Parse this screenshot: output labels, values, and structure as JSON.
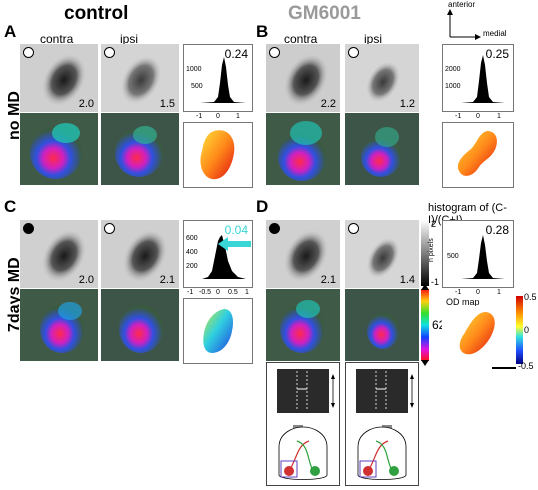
{
  "titles": {
    "control": "control",
    "gm6001": "GM6001"
  },
  "panels": {
    "a": "A",
    "b": "B",
    "c": "C",
    "d": "D"
  },
  "rows": {
    "no_md": "no MD",
    "md": "7days MD"
  },
  "columns": {
    "contra": "contra",
    "ipsi": "ipsi"
  },
  "orientation": {
    "anterior": "anterior",
    "medial": "medial"
  },
  "values": {
    "a_contra": "2.0",
    "a_ipsi": "1.5",
    "a_odi": "0.24",
    "b_contra": "2.2",
    "b_ipsi": "1.2",
    "b_odi": "0.25",
    "c_contra": "2.0",
    "c_ipsi": "2.1",
    "c_odi": "0.04",
    "d_contra": "2.1",
    "d_ipsi": "1.4",
    "d_odi": "0.28"
  },
  "hist": {
    "a": {
      "y_ticks": [
        "1000",
        "500"
      ],
      "x_ticks": [
        "-1",
        "0",
        "1"
      ]
    },
    "b": {
      "y_ticks": [
        "2000",
        "1000"
      ],
      "x_ticks": [
        "-1",
        "0",
        "1"
      ]
    },
    "c": {
      "y_ticks": [
        "600",
        "400",
        "200"
      ],
      "x_ticks": [
        "-1",
        "-0.5",
        "0",
        "0.5",
        "1"
      ]
    },
    "d": {
      "y_ticks": [
        "500"
      ],
      "x_ticks": [
        "-1",
        "0",
        "1"
      ]
    }
  },
  "legend": {
    "histogram_title": "histogram of (C-I)/(C+I)",
    "n_pixels": "n pixels",
    "gray_top": "2",
    "gray_bottom": "-1",
    "angle": "62°",
    "od_map": "OD map",
    "od_max": "0.5",
    "od_mid": "0",
    "od_min": "-0.5"
  },
  "colors": {
    "accent_cyan": "#38d6d6",
    "title_gray": "#9a9a9a"
  }
}
